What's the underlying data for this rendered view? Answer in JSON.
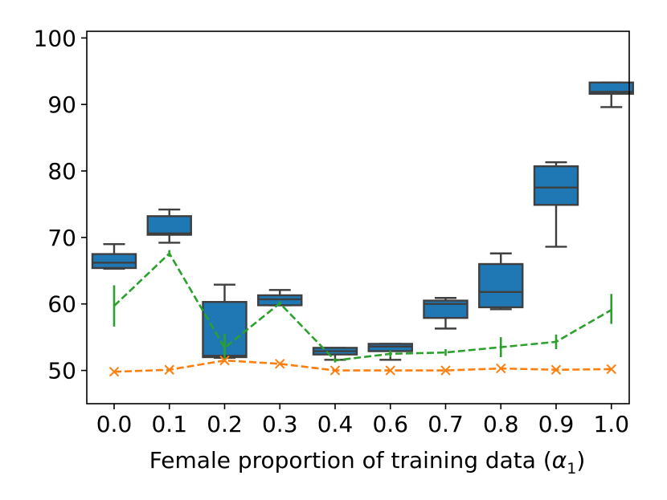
{
  "chart_data": {
    "type": "box",
    "title": "",
    "xlabel": "Female proportion of training data (",
    "xlabel_symbol": "α",
    "xlabel_subscript": "1",
    "xlabel_suffix": ")",
    "ylabel": "",
    "ylim": [
      45,
      101
    ],
    "yticks": [
      "50",
      "60",
      "70",
      "80",
      "90",
      "100"
    ],
    "categories": [
      "0.0",
      "0.1",
      "0.2",
      "0.3",
      "0.4",
      "0.6",
      "0.7",
      "0.8",
      "0.9",
      "1.0"
    ],
    "box_color": "#1f77b4",
    "box_edge_color": "#3f3f3f",
    "boxes": [
      {
        "whislo": 65.3,
        "q1": 65.4,
        "med": 66.2,
        "q3": 67.5,
        "whishi": 69.0
      },
      {
        "whislo": 69.2,
        "q1": 70.4,
        "med": 70.6,
        "q3": 73.2,
        "whishi": 74.2
      },
      {
        "whislo": 51.9,
        "q1": 52.0,
        "med": 52.2,
        "q3": 60.3,
        "whishi": 62.9
      },
      {
        "whislo": 59.8,
        "q1": 59.8,
        "med": 60.7,
        "q3": 61.3,
        "whishi": 62.1
      },
      {
        "whislo": 51.6,
        "q1": 52.4,
        "med": 52.9,
        "q3": 53.4,
        "whishi": 53.4
      },
      {
        "whislo": 51.6,
        "q1": 52.9,
        "med": 53.6,
        "q3": 54.0,
        "whishi": 54.0
      },
      {
        "whislo": 56.3,
        "q1": 57.9,
        "med": 60.0,
        "q3": 60.5,
        "whishi": 60.9
      },
      {
        "whislo": 59.2,
        "q1": 59.5,
        "med": 61.8,
        "q3": 66.0,
        "whishi": 67.6
      },
      {
        "whislo": 68.6,
        "q1": 74.9,
        "med": 77.5,
        "q3": 80.7,
        "whishi": 81.3
      },
      {
        "whislo": 89.6,
        "q1": 91.6,
        "med": 91.9,
        "q3": 93.3,
        "whishi": 93.3
      }
    ],
    "series": [
      {
        "name": "green-dashed",
        "color": "#2ca02c",
        "style": "dashed",
        "marker": "vertical-errorbar",
        "values": [
          59.7,
          67.6,
          53.4,
          60.1,
          51.5,
          52.5,
          52.7,
          53.5,
          54.3,
          59.1
        ],
        "err_low": [
          56.6,
          67.1,
          51.3,
          59.8,
          51.2,
          52.0,
          52.2,
          52.0,
          53.2,
          57.0
        ],
        "err_high": [
          62.8,
          68.1,
          55.5,
          60.4,
          51.8,
          53.0,
          53.2,
          55.0,
          55.4,
          61.5
        ]
      },
      {
        "name": "orange-dashed",
        "color": "#ff7f0e",
        "style": "dashed",
        "marker": "x",
        "values": [
          49.8,
          50.1,
          51.5,
          51.0,
          50.0,
          50.0,
          50.0,
          50.3,
          50.1,
          50.2
        ]
      }
    ]
  }
}
